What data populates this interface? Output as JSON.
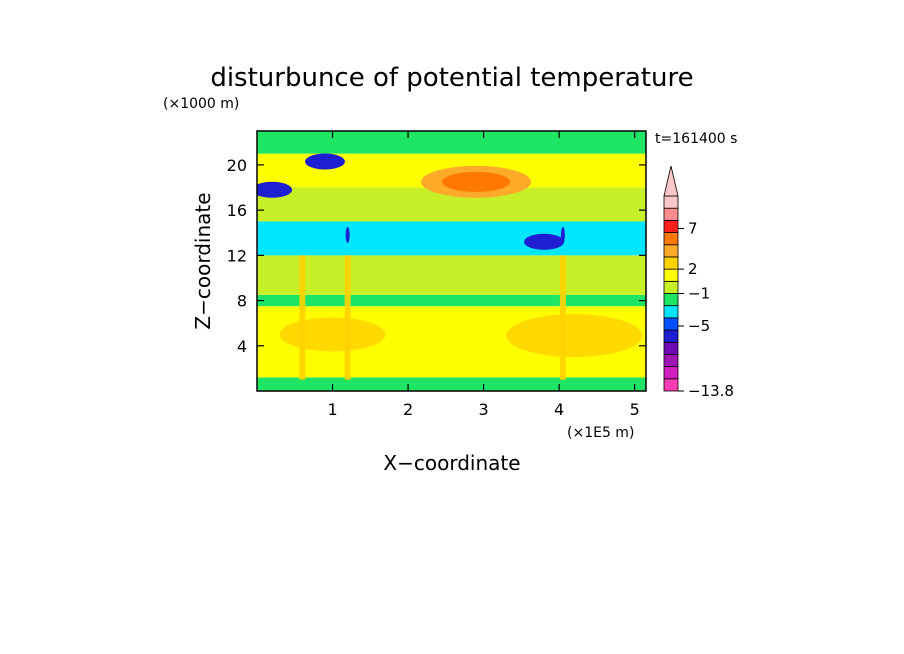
{
  "chart_data": {
    "type": "heatmap",
    "title": "disturbunce of potential temperature",
    "y_unit": "(×1000 m)",
    "x_unit": "(×1E5 m)",
    "xlabel": "X−coordinate",
    "ylabel": "Z−coordinate",
    "time_label": "t=161400 s",
    "xlim": [
      0,
      5.15
    ],
    "ylim": [
      0,
      23
    ],
    "x_ticks": [
      1,
      2,
      3,
      4,
      5
    ],
    "y_ticks": [
      4,
      8,
      12,
      16,
      20
    ],
    "colorbar": {
      "labels": [
        {
          "value": 7,
          "text": "7"
        },
        {
          "value": 2,
          "text": "2"
        },
        {
          "value": -1,
          "text": "−1"
        },
        {
          "value": -5,
          "text": "−5"
        },
        {
          "value": -13.8,
          "text": "−13.8"
        }
      ],
      "colors": [
        "#ff3cb4",
        "#d21ebe",
        "#a014b4",
        "#6e0ab4",
        "#1e1ed2",
        "#0050ff",
        "#00e6ff",
        "#1ee664",
        "#c8f028",
        "#ffff00",
        "#ffd200",
        "#ffaa28",
        "#ff7800",
        "#ff1e1e",
        "#ff8c8c",
        "#ffc8c8"
      ]
    },
    "bands": [
      {
        "z": [
          0,
          1.2
        ],
        "category": "neutral"
      },
      {
        "z": [
          1.2,
          7.5
        ],
        "category": "warm"
      },
      {
        "z": [
          7.5,
          8.5
        ],
        "category": "neutral"
      },
      {
        "z": [
          8.5,
          12
        ],
        "category": "neutral_plus"
      },
      {
        "z": [
          12,
          15
        ],
        "category": "cool"
      },
      {
        "z": [
          15,
          18
        ],
        "category": "neutral_plus"
      },
      {
        "z": [
          18,
          21
        ],
        "category": "warm"
      },
      {
        "z": [
          21,
          23
        ],
        "category": "neutral"
      }
    ],
    "features": [
      {
        "name": "warm-core",
        "x": 2.9,
        "z": 18.5,
        "value": 3
      },
      {
        "name": "cold-patch-left",
        "x": 0.2,
        "z": 17.8,
        "value": -4
      },
      {
        "name": "cold-patch-upper",
        "x": 0.9,
        "z": 20.3,
        "value": -4
      },
      {
        "name": "cold-patch-right",
        "x": 3.8,
        "z": 13.2,
        "value": -4
      },
      {
        "name": "cold-tower-1",
        "x": 1.2,
        "z": 13.8,
        "value": -4
      },
      {
        "name": "cold-tower-2",
        "x": 4.05,
        "z": 13.8,
        "value": -4
      }
    ]
  }
}
